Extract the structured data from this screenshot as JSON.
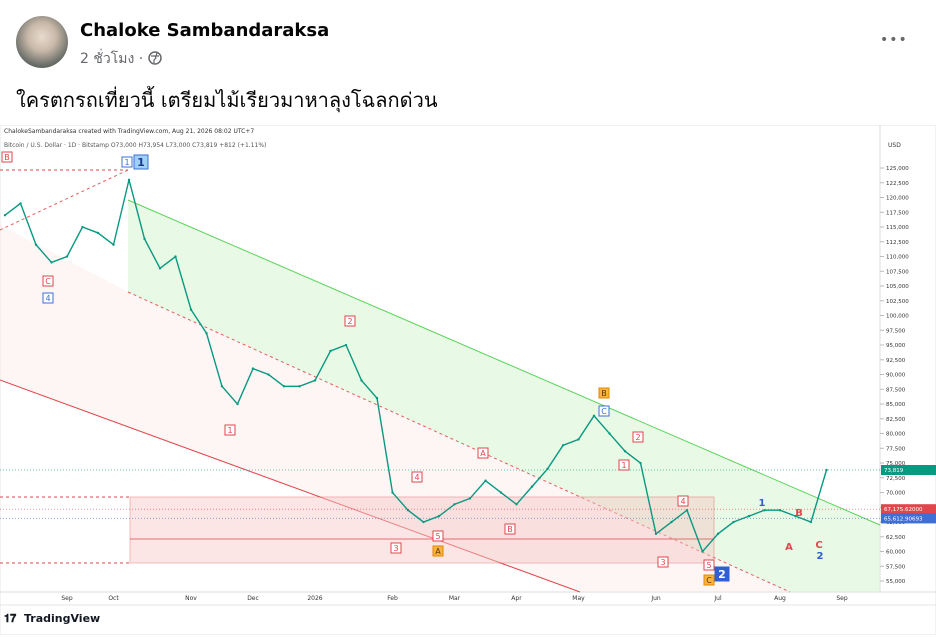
{
  "post": {
    "author": "Chaloke Sambandaraksa",
    "time": "2 ชั่วโมง ·",
    "text": "ใครตกรถเที่ยวนี้ เตรียมไม้เรียวมาหาลุงโฉลกด่วน",
    "menu": "•••"
  },
  "chart_data": {
    "type": "line",
    "title": "ChalokeSambandaraksa created with TradingView.com, Aug 21, 2026 08:02 UTC+7",
    "subtitle": "Bitcoin / U.S. Dollar · 1D · Bitstamp O73,000 H73,954 L73,000 C73,819 +812 (+1.11%)",
    "ylabel": "USD",
    "footer": "TradingView",
    "color": "#089981",
    "categories": [
      null,
      null,
      null,
      null,
      "Sep",
      null,
      null,
      "Oct",
      null,
      null,
      null,
      null,
      "Nov",
      null,
      null,
      null,
      "Dec",
      null,
      null,
      null,
      "2026",
      null,
      null,
      null,
      null,
      "Feb",
      null,
      null,
      null,
      "Mar",
      null,
      null,
      null,
      "Apr",
      null,
      null,
      null,
      "May",
      null,
      null,
      null,
      null,
      "Jun",
      null,
      null,
      null,
      "Jul",
      null,
      null,
      null,
      "Aug",
      null,
      null,
      null,
      "Sep",
      null,
      null
    ],
    "values": [
      117000,
      119000,
      112000,
      109000,
      110000,
      115000,
      114000,
      112000,
      123000,
      113000,
      108000,
      110000,
      101000,
      97000,
      88000,
      85000,
      91000,
      90000,
      88000,
      88000,
      89000,
      94000,
      95000,
      89000,
      86000,
      70000,
      67000,
      65000,
      66000,
      68000,
      69000,
      72000,
      70000,
      68000,
      71000,
      74000,
      78000,
      79000,
      83000,
      80000,
      77000,
      75000,
      63000,
      65000,
      67000,
      60000,
      63000,
      65000,
      66000,
      67000,
      67000,
      66000,
      65000,
      73819,
      null,
      null,
      null
    ],
    "ylim": [
      53140,
      129750
    ],
    "yticks": [
      {
        "value": 55000,
        "label": "55,000"
      },
      {
        "value": 57500,
        "label": "57,500"
      },
      {
        "value": 60000,
        "label": "60,000"
      },
      {
        "value": 62500,
        "label": "62,500"
      },
      {
        "value": 65000,
        "label": "65,000"
      },
      {
        "value": 67500,
        "label": "67,500"
      },
      {
        "value": 70000,
        "label": "70,000"
      },
      {
        "value": 72500,
        "label": "72,500"
      },
      {
        "value": 75000,
        "label": "75,000"
      },
      {
        "value": 77500,
        "label": "77,500"
      },
      {
        "value": 80000,
        "label": "80,000"
      },
      {
        "value": 82500,
        "label": "82,500"
      },
      {
        "value": 85000,
        "label": "85,000"
      },
      {
        "value": 87500,
        "label": "87,500"
      },
      {
        "value": 90000,
        "label": "90,000"
      },
      {
        "value": 92500,
        "label": "92,500"
      },
      {
        "value": 95000,
        "label": "95,000"
      },
      {
        "value": 97500,
        "label": "97,500"
      },
      {
        "value": 100000,
        "label": "100,000"
      },
      {
        "value": 102500,
        "label": "102,500"
      },
      {
        "value": 105000,
        "label": "105,000"
      },
      {
        "value": 107500,
        "label": "107,500"
      },
      {
        "value": 110000,
        "label": "110,000"
      },
      {
        "value": 112500,
        "label": "112,500"
      },
      {
        "value": 115000,
        "label": "115,000"
      },
      {
        "value": 117500,
        "label": "117,500"
      },
      {
        "value": 120000,
        "label": "120,000"
      },
      {
        "value": 122500,
        "label": "122,500"
      },
      {
        "value": 125000,
        "label": "125,000"
      }
    ],
    "grid": false,
    "price_labels": [
      {
        "value": 73819,
        "label": "73,819",
        "color": "#089981"
      },
      {
        "value": 67175.62,
        "label": "67,175.62000",
        "color": "#e0474c"
      },
      {
        "value": 65612.90693,
        "label": "65,612.90693",
        "color": "#3d6fd6"
      }
    ],
    "annotations": [
      "B",
      "1",
      "1",
      "C",
      "4",
      "1",
      "2",
      "3",
      "4",
      "5",
      "A",
      "A",
      "B",
      "B",
      "C",
      "2",
      "1",
      "4",
      "3",
      "5",
      "C",
      "2",
      "1",
      "B",
      "A",
      "C",
      "2"
    ]
  }
}
